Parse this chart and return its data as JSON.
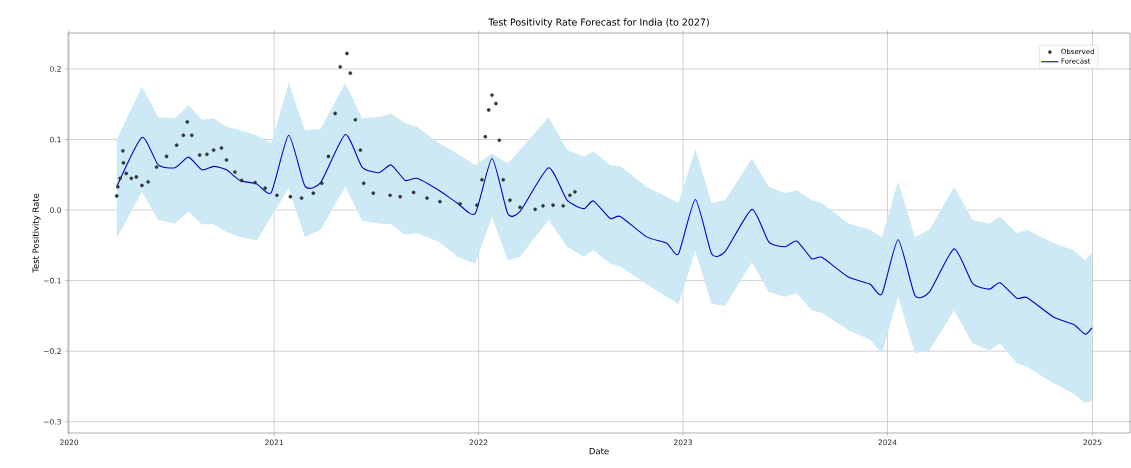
{
  "chart_data": {
    "type": "line",
    "title": "Test Positivity Rate Forecast for India (to 2027)",
    "xlabel": "Date",
    "ylabel": "Test Positivity Rate",
    "xlim": [
      "2019-12-30",
      "2025-03-09"
    ],
    "xticks": [
      "2020",
      "2021",
      "2022",
      "2023",
      "2024",
      "2025"
    ],
    "ylim": [
      -0.316,
      0.251
    ],
    "yticks": [
      {
        "value": -0.3,
        "label": "−0.3"
      },
      {
        "value": -0.2,
        "label": "−0.2"
      },
      {
        "value": -0.1,
        "label": "−0.1"
      },
      {
        "value": 0,
        "label": "0.0"
      },
      0.1,
      0.2
    ],
    "grid": true,
    "legend": "top right",
    "series": [
      {
        "name": "Observed",
        "type": "scatter",
        "marker": "circle",
        "color": "#333333",
        "x": [
          "2020-03-26",
          "2020-03-28",
          "2020-04-01",
          "2020-04-06",
          "2020-04-07",
          "2020-04-12",
          "2020-04-21",
          "2020-04-30",
          "2020-05-10",
          "2020-05-21",
          "2020-06-05",
          "2020-06-23",
          "2020-07-11",
          "2020-07-23",
          "2020-07-30",
          "2020-08-07",
          "2020-08-21",
          "2020-09-03",
          "2020-09-15",
          "2020-09-29",
          "2020-10-08",
          "2020-10-23",
          "2020-11-04",
          "2020-11-28",
          "2020-12-16",
          "2021-01-06",
          "2021-01-30",
          "2021-02-19",
          "2021-03-12",
          "2021-03-27",
          "2021-04-08",
          "2021-04-20",
          "2021-04-29",
          "2021-05-11",
          "2021-05-17",
          "2021-05-26",
          "2021-06-04",
          "2021-06-10",
          "2021-06-27",
          "2021-07-27",
          "2021-08-14",
          "2021-09-07",
          "2021-10-01",
          "2021-10-24",
          "2021-11-29",
          "2021-12-29",
          "2022-01-07",
          "2022-01-13",
          "2022-01-19",
          "2022-01-25",
          "2022-02-01",
          "2022-02-07",
          "2022-02-14",
          "2022-02-26",
          "2022-03-16",
          "2022-04-12",
          "2022-04-26",
          "2022-05-14",
          "2022-06-01",
          "2022-06-13",
          "2022-06-22"
        ],
        "values": [
          0.02,
          0.033,
          0.045,
          0.084,
          0.067,
          0.052,
          0.045,
          0.047,
          0.035,
          0.04,
          0.061,
          0.076,
          0.092,
          0.106,
          0.125,
          0.106,
          0.078,
          0.079,
          0.085,
          0.088,
          0.071,
          0.054,
          0.042,
          0.039,
          0.031,
          0.021,
          0.019,
          0.017,
          0.024,
          0.038,
          0.076,
          0.137,
          0.203,
          0.222,
          0.194,
          0.128,
          0.085,
          0.038,
          0.024,
          0.021,
          0.019,
          0.025,
          0.017,
          0.012,
          0.009,
          0.007,
          0.043,
          0.104,
          0.142,
          0.163,
          0.151,
          0.099,
          0.043,
          0.014,
          0.004,
          0.001,
          0.006,
          0.007,
          0.006,
          0.021,
          0.026
        ]
      },
      {
        "name": "Forecast",
        "color": "#0000cc",
        "x": [
          "2020-03-26",
          "2020-05-10",
          "2020-06-08",
          "2020-07-08",
          "2020-08-01",
          "2020-08-25",
          "2020-09-15",
          "2020-10-08",
          "2020-11-01",
          "2020-12-01",
          "2020-12-27",
          "2021-01-27",
          "2021-02-25",
          "2021-03-25",
          "2021-05-08",
          "2021-06-07",
          "2021-07-07",
          "2021-07-29",
          "2021-08-23",
          "2021-09-13",
          "2021-10-22",
          "2021-11-24",
          "2021-12-26",
          "2022-01-25",
          "2022-02-22",
          "2022-03-16",
          "2022-05-06",
          "2022-06-08",
          "2022-07-08",
          "2022-07-25",
          "2022-08-24",
          "2022-09-11",
          "2022-10-28",
          "2022-12-03",
          "2022-12-24",
          "2023-01-23",
          "2023-02-21",
          "2023-03-17",
          "2023-05-04",
          "2023-06-03",
          "2023-07-02",
          "2023-07-23",
          "2023-08-19",
          "2023-09-06",
          "2023-10-23",
          "2023-12-01",
          "2023-12-22",
          "2024-01-20",
          "2024-02-19",
          "2024-03-16",
          "2024-04-29",
          "2024-06-01",
          "2024-07-01",
          "2024-07-20",
          "2024-08-19",
          "2024-09-06",
          "2024-10-24",
          "2024-11-28",
          "2024-12-19",
          "2024-12-31"
        ],
        "values": [
          0.033,
          0.103,
          0.064,
          0.06,
          0.075,
          0.057,
          0.062,
          0.057,
          0.042,
          0.037,
          0.025,
          0.106,
          0.034,
          0.039,
          0.107,
          0.061,
          0.053,
          0.064,
          0.042,
          0.045,
          0.028,
          0.01,
          -0.005,
          0.073,
          -0.005,
          -0.002,
          0.06,
          0.014,
          0.002,
          0.013,
          -0.012,
          -0.009,
          -0.038,
          -0.047,
          -0.062,
          0.015,
          -0.062,
          -0.059,
          0.001,
          -0.045,
          -0.052,
          -0.044,
          -0.069,
          -0.067,
          -0.095,
          -0.105,
          -0.119,
          -0.042,
          -0.121,
          -0.116,
          -0.055,
          -0.104,
          -0.112,
          -0.103,
          -0.125,
          -0.124,
          -0.152,
          -0.162,
          -0.176,
          -0.167
        ],
        "upper": [
          0.1,
          0.175,
          0.132,
          0.13,
          0.149,
          0.128,
          0.13,
          0.118,
          0.113,
          0.106,
          0.095,
          0.18,
          0.113,
          0.115,
          0.18,
          0.13,
          0.132,
          0.137,
          0.123,
          0.118,
          0.095,
          0.08,
          0.064,
          0.08,
          0.066,
          0.085,
          0.132,
          0.085,
          0.076,
          0.083,
          0.064,
          0.062,
          0.033,
          0.019,
          0.01,
          0.087,
          0.01,
          0.014,
          0.073,
          0.033,
          0.024,
          0.028,
          0.014,
          0.01,
          -0.019,
          -0.028,
          -0.038,
          0.04,
          -0.038,
          -0.028,
          0.033,
          -0.014,
          -0.019,
          -0.009,
          -0.033,
          -0.028,
          -0.047,
          -0.057,
          -0.071,
          -0.061
        ],
        "lower": [
          -0.04,
          0.026,
          -0.014,
          -0.019,
          -0.002,
          -0.02,
          -0.02,
          -0.031,
          -0.038,
          -0.043,
          -0.009,
          0.031,
          -0.038,
          -0.028,
          0.033,
          -0.015,
          -0.019,
          -0.02,
          -0.035,
          -0.033,
          -0.045,
          -0.066,
          -0.076,
          -0.009,
          -0.071,
          -0.066,
          -0.014,
          -0.052,
          -0.066,
          -0.057,
          -0.076,
          -0.08,
          -0.105,
          -0.123,
          -0.133,
          -0.058,
          -0.133,
          -0.136,
          -0.074,
          -0.116,
          -0.123,
          -0.118,
          -0.142,
          -0.146,
          -0.17,
          -0.184,
          -0.203,
          -0.123,
          -0.203,
          -0.199,
          -0.142,
          -0.189,
          -0.199,
          -0.189,
          -0.217,
          -0.222,
          -0.246,
          -0.26,
          -0.274,
          -0.27
        ]
      }
    ]
  }
}
